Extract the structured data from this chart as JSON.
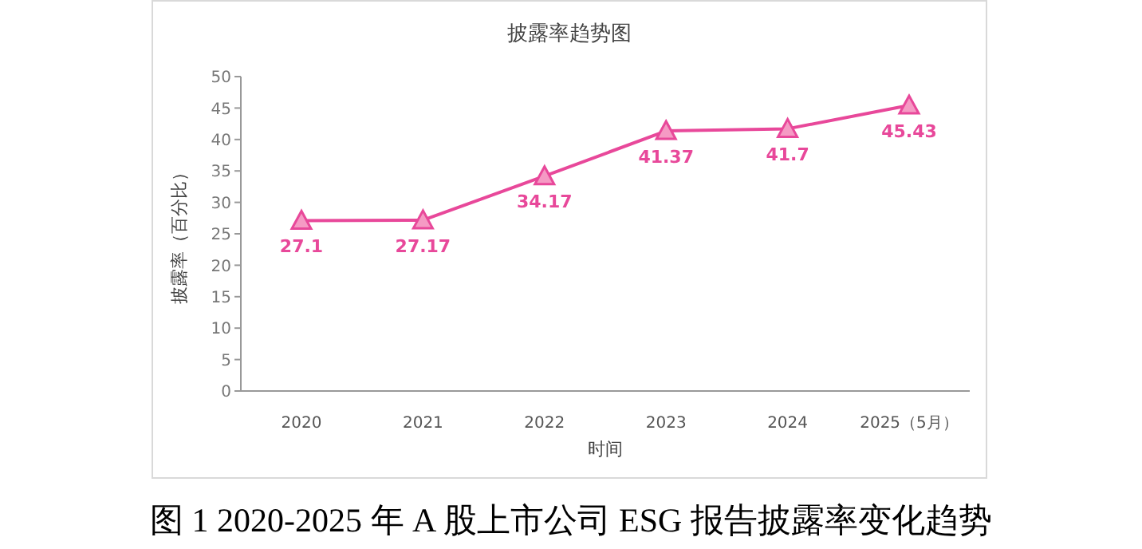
{
  "chart_data": {
    "type": "line",
    "title": "披露率趋势图",
    "xlabel": "时间",
    "ylabel": "披露率（百分比）",
    "categories": [
      "2020",
      "2021",
      "2022",
      "2023",
      "2024",
      "2025（5月）"
    ],
    "series": [
      {
        "color": "#e8489a",
        "values": [
          27.1,
          27.17,
          34.17,
          41.37,
          41.7,
          45.43
        ]
      }
    ],
    "ylim": [
      0,
      50
    ],
    "yticks": [
      0,
      5,
      10,
      15,
      20,
      25,
      30,
      35,
      40,
      45,
      50
    ],
    "grid": false,
    "legend": false,
    "marker": "triangle",
    "line_style": "solid",
    "data_labels": true,
    "annotations": [
      "图 1 2020-2025 年 A 股上市公司 ESG 报告披露率变化趋势"
    ]
  }
}
